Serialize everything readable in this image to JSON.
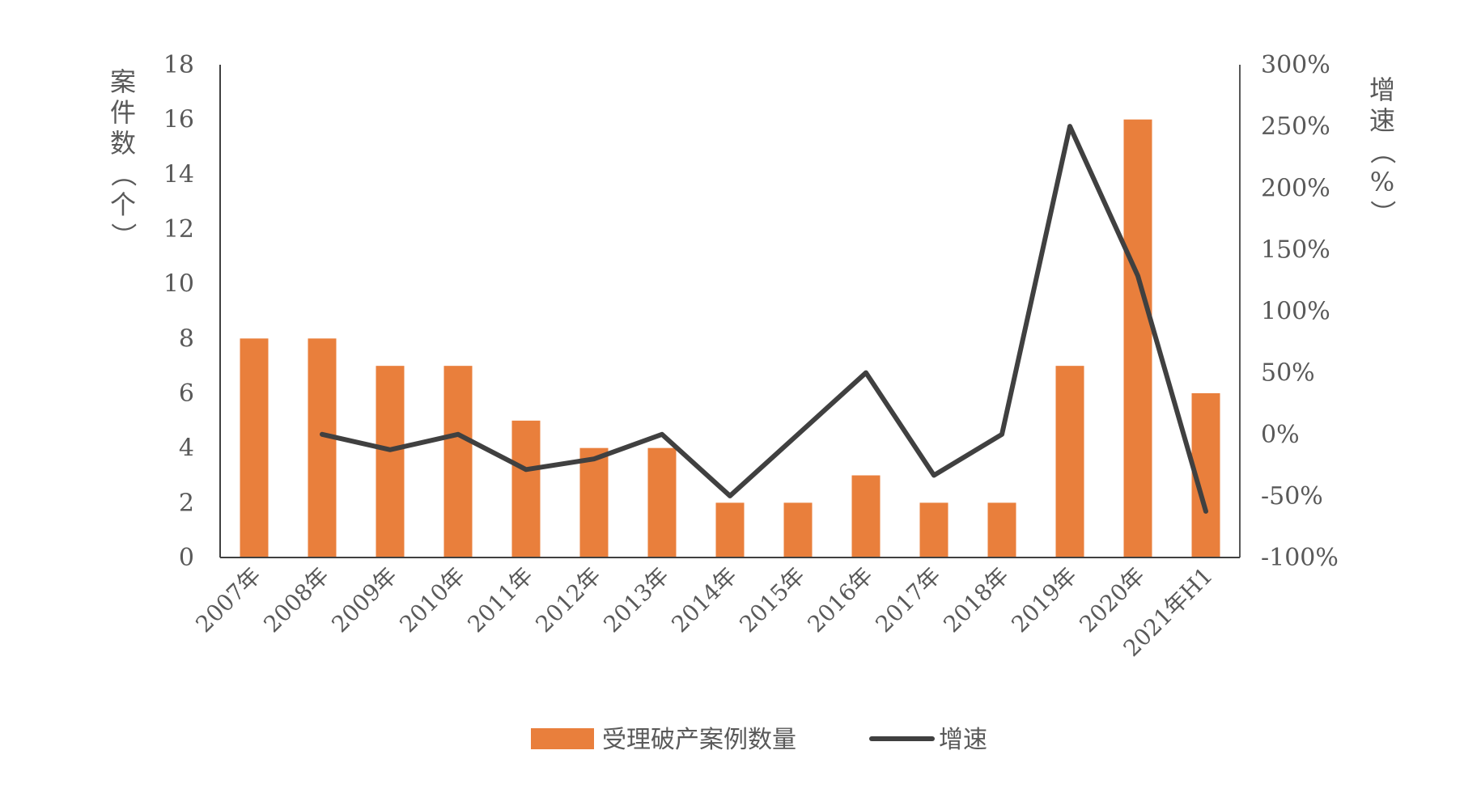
{
  "chart_data": {
    "type": "bar",
    "categories": [
      "2007年",
      "2008年",
      "2009年",
      "2010年",
      "2011年",
      "2012年",
      "2013年",
      "2014年",
      "2015年",
      "2016年",
      "2017年",
      "2018年",
      "2019年",
      "2020年",
      "2021年H1"
    ],
    "series": [
      {
        "name": "受理破产案例数量",
        "type": "bar",
        "axis": "left",
        "color": "#E97F3C",
        "values": [
          8,
          8,
          7,
          7,
          5,
          4,
          4,
          2,
          2,
          3,
          2,
          2,
          7,
          16,
          6
        ]
      },
      {
        "name": "增速",
        "type": "line",
        "axis": "right",
        "color": "#404040",
        "values": [
          null,
          0,
          -12.5,
          0,
          -28.6,
          -20,
          0,
          -50,
          0,
          50,
          -33.3,
          0,
          250,
          128.6,
          -62.5
        ]
      }
    ],
    "ylabel": "案件数（个）",
    "y2label": "增速（%）",
    "ylim": [
      0,
      18
    ],
    "y2lim": [
      -100,
      300
    ],
    "yticks": [
      "0",
      "2",
      "4",
      "6",
      "8",
      "10",
      "12",
      "14",
      "16",
      "18"
    ],
    "y2ticks": [
      "-100%",
      "-50%",
      "0%",
      "50%",
      "100%",
      "150%",
      "200%",
      "250%",
      "300%"
    ],
    "legend_position": "bottom",
    "grid": false
  }
}
